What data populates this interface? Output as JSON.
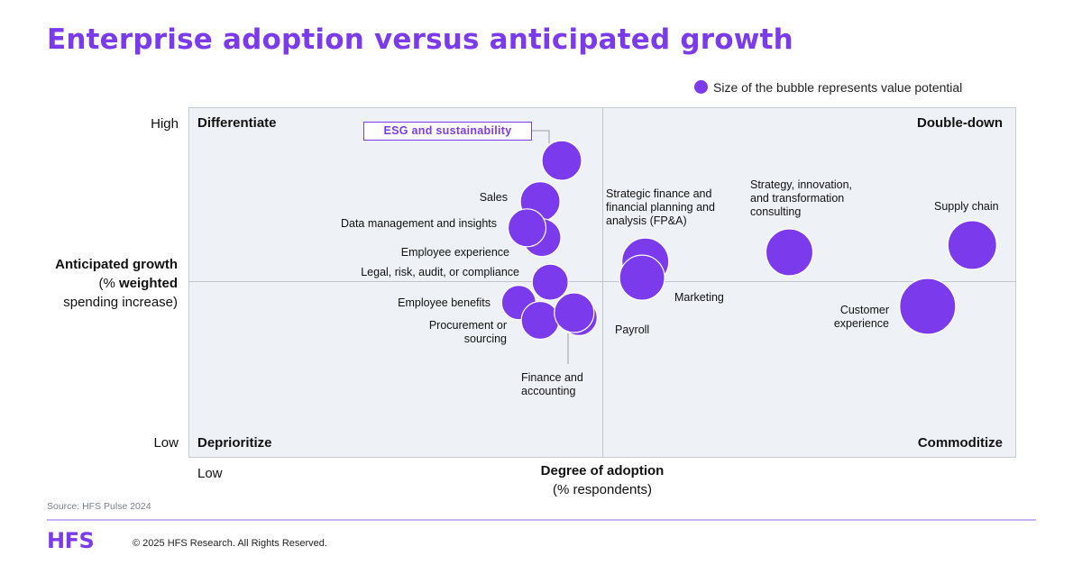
{
  "title": "Enterprise adoption versus anticipated growth",
  "legend": {
    "text": "Size of the bubble represents value potential",
    "color": "#7c3aed"
  },
  "quadrants": {
    "top_left": "Differentiate",
    "top_right": "Double-down",
    "bottom_left": "Deprioritize",
    "bottom_right": "Commoditize"
  },
  "y_axis": {
    "high": "High",
    "low": "Low",
    "title_line1": "Anticipated growth",
    "title_line2_pre": "(% ",
    "title_line2_bold": "weighted",
    "title_line3": "spending increase)"
  },
  "x_axis": {
    "low": "Low",
    "title_line1": "Degree of adoption",
    "title_line2": "(% respondents)"
  },
  "chart_data": {
    "type": "bubble",
    "title": "Enterprise adoption versus anticipated growth",
    "xlabel": "Degree of adoption (% respondents)",
    "ylabel": "Anticipated growth (% weighted spending increase)",
    "size_meaning": "Size of the bubble represents value potential",
    "xlim": [
      0,
      100
    ],
    "ylim": [
      0,
      100
    ],
    "points": [
      {
        "name": "ESG and sustainability",
        "x": 45.1,
        "y": 84.8,
        "size": 22
      },
      {
        "name": "Sales",
        "x": 42.5,
        "y": 73.1,
        "size": 22
      },
      {
        "name": "Employee experience",
        "x": 42.7,
        "y": 62.8,
        "size": 21
      },
      {
        "name": "Data management and insights",
        "x": 40.9,
        "y": 65.6,
        "size": 21
      },
      {
        "name": "Legal, risk, audit, or compliance",
        "x": 43.7,
        "y": 50.1,
        "size": 20
      },
      {
        "name": "Employee benefits",
        "x": 39.9,
        "y": 44.3,
        "size": 19
      },
      {
        "name": "Procurement or sourcing",
        "x": 42.5,
        "y": 39.2,
        "size": 21
      },
      {
        "name": "Finance and accounting",
        "x": 47.2,
        "y": 40.0,
        "size": 20
      },
      {
        "name": "Payroll",
        "x": 46.6,
        "y": 41.4,
        "size": 22
      },
      {
        "name": "Strategic finance and financial planning and analysis (FP&A)",
        "x": 55.2,
        "y": 56.0,
        "size": 26
      },
      {
        "name": "Marketing",
        "x": 54.8,
        "y": 51.4,
        "size": 25
      },
      {
        "name": "Strategy, innovation, and transformation consulting",
        "x": 72.6,
        "y": 58.6,
        "size": 26
      },
      {
        "name": "Supply chain",
        "x": 94.7,
        "y": 60.7,
        "size": 27
      },
      {
        "name": "Customer experience",
        "x": 89.3,
        "y": 43.2,
        "size": 31
      }
    ],
    "callout": "ESG and sustainability",
    "color": "#7c3aed",
    "grid": false,
    "legend_position": "top-right"
  },
  "labels": {
    "sales": "Sales",
    "data_mgmt": "Data management and insights",
    "employee_exp": "Employee experience",
    "legal": "Legal, risk, audit, or compliance",
    "employee_benefits": "Employee benefits",
    "procurement_1": "Procurement or",
    "procurement_2": "sourcing",
    "finance_1": "Finance and",
    "finance_2": "accounting",
    "payroll": "Payroll",
    "strategic_finance_1": "Strategic finance and",
    "strategic_finance_2": "financial planning and",
    "strategic_finance_3": "analysis (FP&A)",
    "marketing": "Marketing",
    "strategy_1": "Strategy, innovation,",
    "strategy_2": "and transformation",
    "strategy_3": "consulting",
    "supply_chain": "Supply chain",
    "customer_exp_1": "Customer",
    "customer_exp_2": "experience",
    "esg": "ESG and sustainability"
  },
  "footer": {
    "source": "Source: HFS Pulse 2024",
    "logo": "HFS",
    "copyright": "© 2025 HFS Research. All Rights Reserved."
  }
}
